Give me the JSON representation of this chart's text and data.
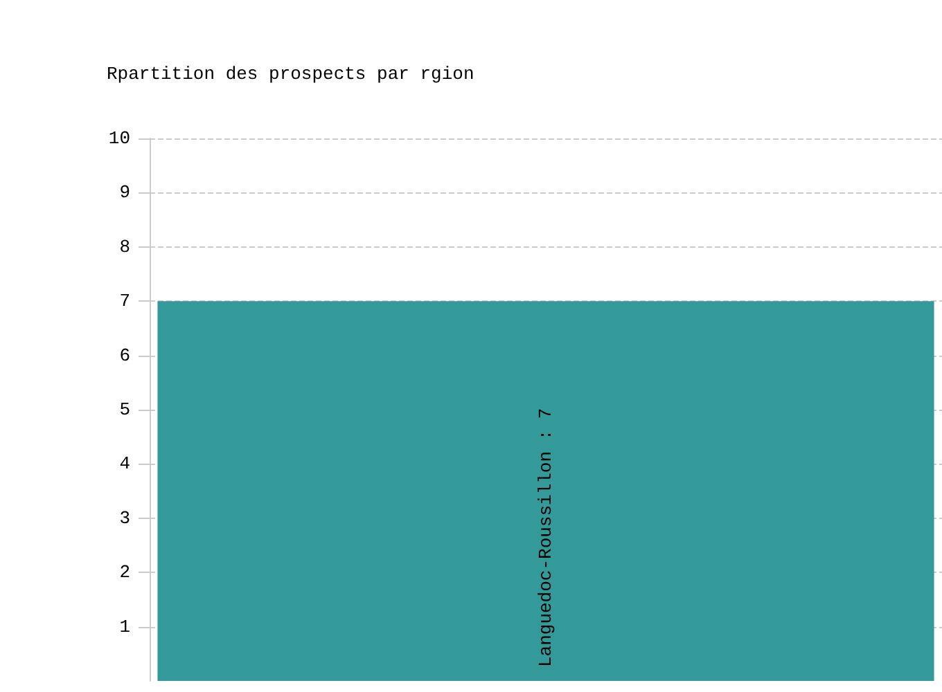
{
  "chart_data": {
    "type": "bar",
    "title": "Rpartition des prospects par rgion",
    "categories": [
      null
    ],
    "values": [
      7
    ],
    "value_labels": [
      "Languedoc-Roussillon : 7"
    ],
    "color": "#339999",
    "ylim": [
      0,
      10
    ],
    "yticks": [
      1,
      2,
      3,
      4,
      5,
      6,
      7,
      8,
      9,
      10
    ],
    "grid": "y"
  }
}
